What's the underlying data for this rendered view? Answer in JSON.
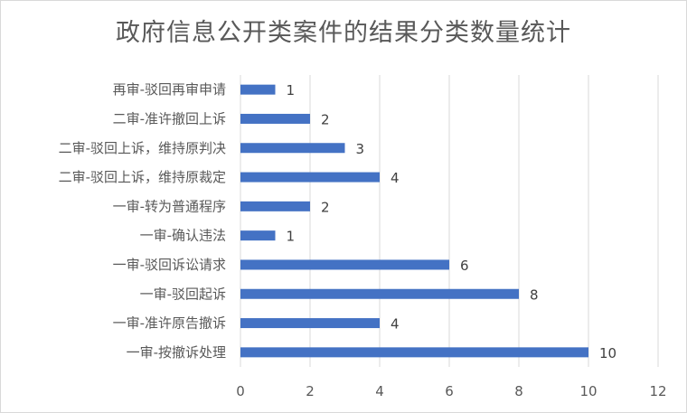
{
  "chart_data": {
    "type": "bar",
    "orientation": "horizontal",
    "title": "政府信息公开类案件的结果分类数量统计",
    "categories": [
      "再审-驳回再审申请",
      "二审-准许撤回上诉",
      "二审-驳回上诉，维持原判决",
      "二审-驳回上诉，维持原裁定",
      "一审-转为普通程序",
      "一审-确认违法",
      "一审-驳回诉讼请求",
      "一审-驳回起诉",
      "一审-准许原告撤诉",
      "一审-按撤诉处理"
    ],
    "values": [
      1,
      2,
      3,
      4,
      2,
      1,
      6,
      8,
      4,
      10
    ],
    "xlim": [
      0,
      12
    ],
    "xticks": [
      0,
      2,
      4,
      6,
      8,
      10,
      12
    ],
    "grid": "vertical",
    "legend": "none",
    "bar_color": "#4472c4",
    "data_labels": true
  }
}
